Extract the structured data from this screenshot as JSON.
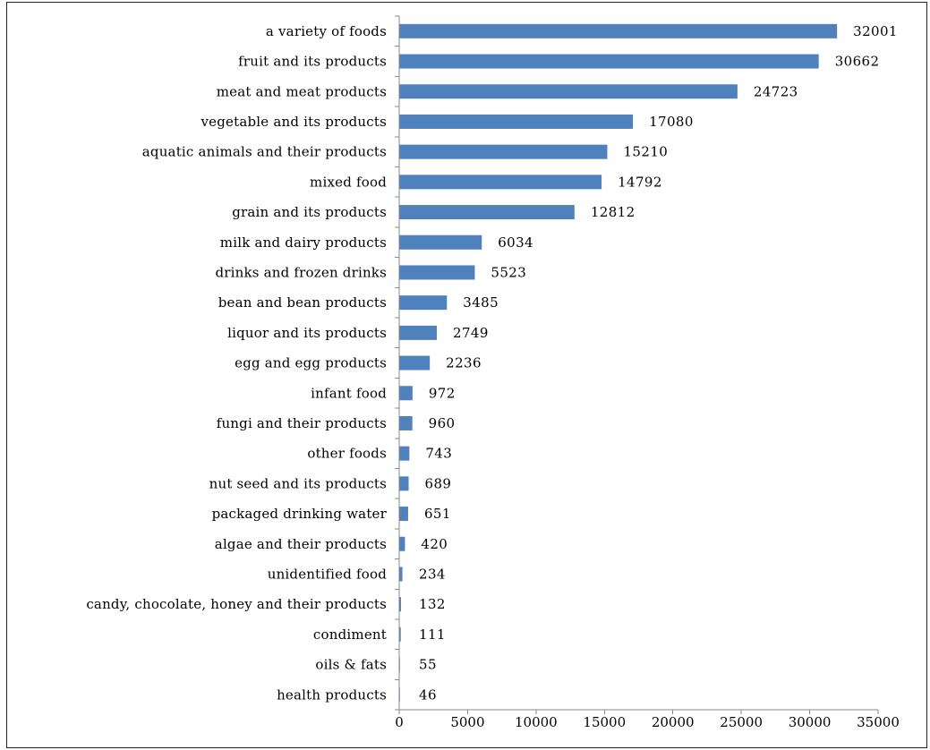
{
  "chart_data": {
    "type": "bar",
    "orientation": "horizontal",
    "categories": [
      "a variety of foods",
      "fruit and its products",
      "meat and meat products",
      "vegetable and its products",
      "aquatic animals and their products",
      "mixed food",
      "grain and its products",
      "milk and dairy products",
      "drinks and frozen drinks",
      "bean and bean products",
      "liquor and its products",
      "egg and egg products",
      "infant food",
      "fungi and their products",
      "other foods",
      "nut seed and its products",
      "packaged drinking water",
      "algae and their products",
      "unidentified food",
      "candy, chocolate, honey and their products",
      "condiment",
      "oils & fats",
      "health products"
    ],
    "values": [
      32001,
      30662,
      24723,
      17080,
      15210,
      14792,
      12812,
      6034,
      5523,
      3485,
      2749,
      2236,
      972,
      960,
      743,
      689,
      651,
      420,
      234,
      132,
      111,
      55,
      46
    ],
    "xlim": [
      0,
      35000
    ],
    "xticks": [
      0,
      5000,
      10000,
      15000,
      20000,
      25000,
      30000,
      35000
    ],
    "data_labels": true,
    "grid": false,
    "legend": "none",
    "bar_color": "#4f81bd"
  }
}
